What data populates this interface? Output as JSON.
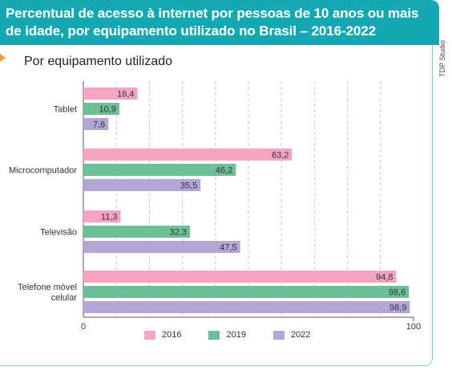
{
  "header": {
    "title": "Percentual de acesso à internet por pessoas de 10 anos ou mais de idade, por equipamento utilizado no Brasil – 2016-2022",
    "subtitle": "Por equipamento utilizado",
    "credit": "TDP Studio"
  },
  "chart_data": {
    "type": "bar",
    "orientation": "horizontal",
    "title": "Percentual de acesso à internet por pessoas de 10 anos ou mais de idade, por equipamento utilizado no Brasil – 2016-2022",
    "subtitle": "Por equipamento utilizado",
    "categories": [
      "Tablet",
      "Microcomputador",
      "Televisão",
      "Telefone móvel celular"
    ],
    "category_lines": [
      [
        "Tablet"
      ],
      [
        "Microcomputador"
      ],
      [
        "Televisão"
      ],
      [
        "Telefone móvel",
        "celular"
      ]
    ],
    "series": [
      {
        "name": "2016",
        "color": "#f4a3c4",
        "values": [
          16.4,
          63.2,
          11.3,
          94.8
        ],
        "labels": [
          "16,4",
          "63,2",
          "11,3",
          "94,8"
        ]
      },
      {
        "name": "2019",
        "color": "#6dbf95",
        "values": [
          10.9,
          46.2,
          32.3,
          98.6
        ],
        "labels": [
          "10,9",
          "46,2",
          "32,3",
          "98,6"
        ]
      },
      {
        "name": "2022",
        "color": "#b3a6d6",
        "values": [
          7.6,
          35.5,
          47.5,
          98.9
        ],
        "labels": [
          "7,6",
          "35,5",
          "47,5",
          "98,9"
        ]
      }
    ],
    "xlim": [
      0,
      100
    ],
    "x_ticks": [
      "0",
      "100"
    ],
    "grid": "vertical dashed",
    "legend_position": "bottom"
  }
}
